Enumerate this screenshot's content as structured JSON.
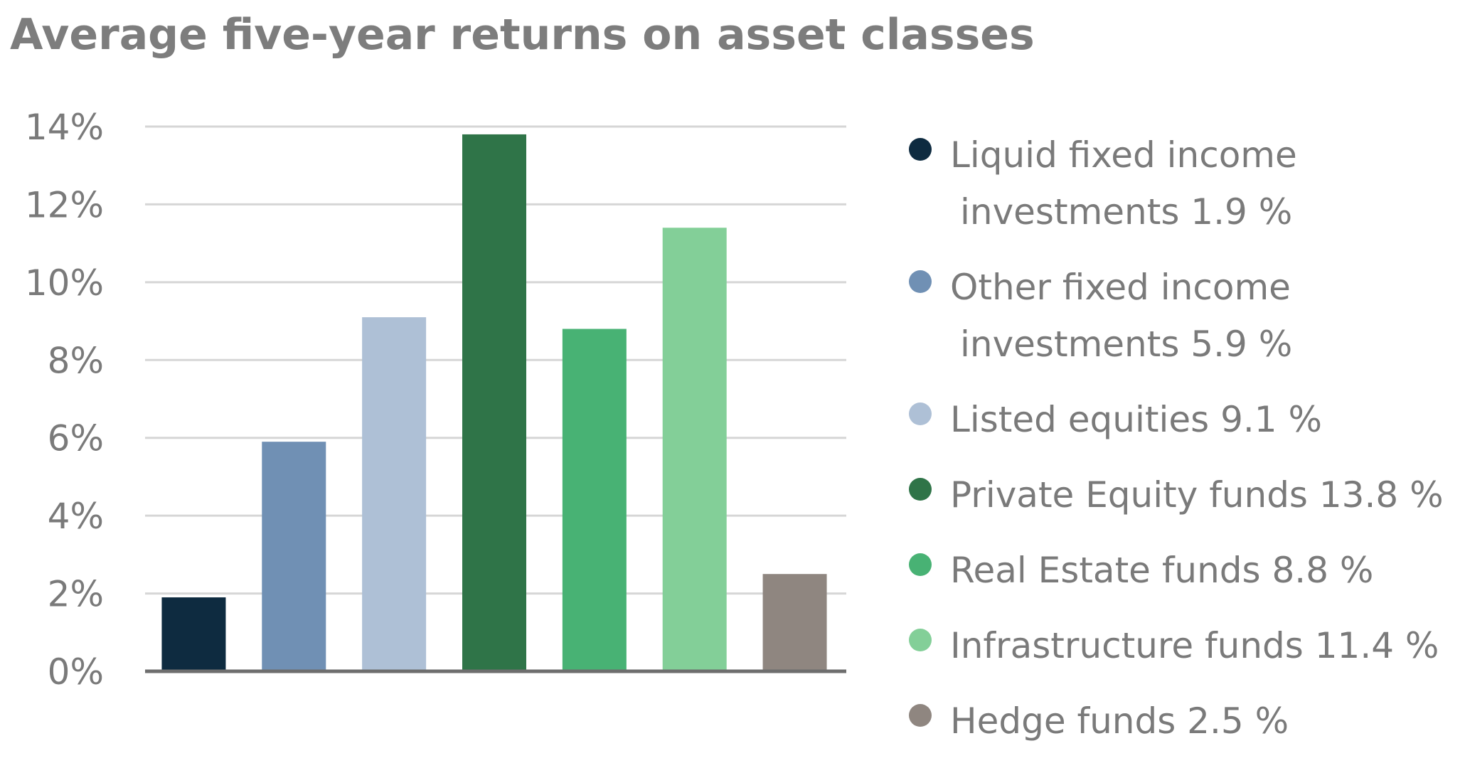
{
  "chart_data": {
    "type": "bar",
    "title": "Average five-year returns on asset classes",
    "categories": [
      "Liquid fixed income investments",
      "Other fixed income investments",
      "Listed equities",
      "Private Equity funds",
      "Real Estate funds",
      "Infrastructure funds",
      "Hedge funds"
    ],
    "values": [
      1.9,
      5.9,
      9.1,
      13.8,
      8.8,
      11.4,
      2.5
    ],
    "colors": [
      "#0e2b40",
      "#7090b4",
      "#aec0d6",
      "#2f7448",
      "#48b274",
      "#83cf98",
      "#8f8680"
    ],
    "ylim": [
      0,
      14
    ],
    "yticks": [
      "0%",
      "2%",
      "4%",
      "6%",
      "8%",
      "10%",
      "12%",
      "14%"
    ],
    "ytick_values": [
      0,
      2,
      4,
      6,
      8,
      10,
      12,
      14
    ],
    "grid": true,
    "legend_position": "right",
    "legend": [
      {
        "line1": "Liquid fixed income",
        "line2": "investments 1.9 %"
      },
      {
        "line1": "Other fixed income",
        "line2": "investments 5.9 %"
      },
      {
        "line1": "Listed equities 9.1 %",
        "line2": ""
      },
      {
        "line1": "Private Equity funds 13.8 %",
        "line2": ""
      },
      {
        "line1": "Real Estate funds 8.8 %",
        "line2": ""
      },
      {
        "line1": "Infrastructure funds 11.4 %",
        "line2": ""
      },
      {
        "line1": "Hedge funds 2.5 %",
        "line2": ""
      }
    ]
  }
}
